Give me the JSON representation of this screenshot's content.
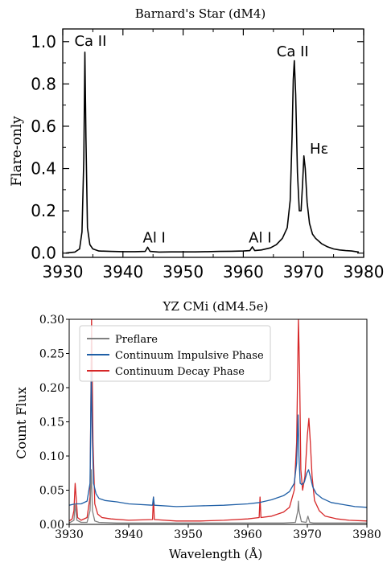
{
  "colors": {
    "axis": "#000000",
    "top_line": "#000000",
    "preflare": "#808080",
    "impulsive": "#1f5fa6",
    "decay": "#d62728"
  },
  "chart_data": [
    {
      "type": "line",
      "title": "Barnard's Star (dM4)",
      "xlabel": "",
      "ylabel": "Flare-only",
      "xlim": [
        3930,
        3980
      ],
      "ylim": [
        -0.02,
        1.06
      ],
      "x_ticks": [
        "3930",
        "3940",
        "3950",
        "3960",
        "3970",
        "3980"
      ],
      "y_ticks": [
        "0.0",
        "0.2",
        "0.4",
        "0.6",
        "0.8",
        "1.0"
      ],
      "grid": false,
      "annotations": [
        {
          "text": "Ca II",
          "x": 3934.6,
          "y": 0.98
        },
        {
          "text": "Al I",
          "x": 3945.2,
          "y": 0.05
        },
        {
          "text": "Al I",
          "x": 3962.8,
          "y": 0.05
        },
        {
          "text": "Ca II",
          "x": 3968.2,
          "y": 0.93
        },
        {
          "text": "Hε",
          "x": 3972.6,
          "y": 0.47
        }
      ],
      "series": [
        {
          "x": [
            3930.5,
            3931,
            3932,
            3932.8,
            3933.2,
            3933.5,
            3933.67,
            3933.85,
            3934.1,
            3934.5,
            3935,
            3936,
            3938,
            3940,
            3942,
            3943.7,
            3944.1,
            3944.5,
            3946,
            3948,
            3950,
            3952,
            3954,
            3956,
            3958,
            3960,
            3961.1,
            3961.5,
            3961.9,
            3963,
            3964.5,
            3965.5,
            3966.5,
            3967.3,
            3967.8,
            3968.1,
            3968.3,
            3968.47,
            3968.7,
            3969,
            3969.3,
            3969.6,
            3969.85,
            3970.07,
            3970.3,
            3970.6,
            3971,
            3971.5,
            3972,
            3973,
            3974,
            3975,
            3976,
            3977,
            3978,
            3979.2
          ],
          "y": [
            0.0,
            0.002,
            0.005,
            0.02,
            0.1,
            0.45,
            0.95,
            0.55,
            0.12,
            0.04,
            0.02,
            0.01,
            0.008,
            0.007,
            0.007,
            0.008,
            0.028,
            0.008,
            0.005,
            0.006,
            0.006,
            0.006,
            0.007,
            0.008,
            0.009,
            0.01,
            0.012,
            0.03,
            0.012,
            0.015,
            0.025,
            0.04,
            0.07,
            0.12,
            0.25,
            0.55,
            0.82,
            0.91,
            0.75,
            0.38,
            0.2,
            0.2,
            0.33,
            0.46,
            0.4,
            0.24,
            0.14,
            0.09,
            0.07,
            0.045,
            0.03,
            0.02,
            0.015,
            0.012,
            0.01,
            0.005
          ]
        }
      ]
    },
    {
      "type": "line",
      "title": "YZ CMi (dM4.5e)",
      "xlabel": "Wavelength (Å)",
      "ylabel": "Count Flux",
      "xlim": [
        3930,
        3980
      ],
      "ylim": [
        0.0,
        0.3
      ],
      "x_ticks": [
        "3930",
        "3940",
        "3950",
        "3960",
        "3970",
        "3980"
      ],
      "y_ticks": [
        "0.00",
        "0.05",
        "0.10",
        "0.15",
        "0.20",
        "0.25",
        "0.30"
      ],
      "grid": false,
      "legend_position": "top-left",
      "series": [
        {
          "name": "Preflare",
          "x": [
            3930,
            3930.8,
            3931,
            3931.3,
            3932,
            3933,
            3933.5,
            3933.7,
            3933.9,
            3934.3,
            3935,
            3938,
            3944,
            3950,
            3958,
            3962,
            3966,
            3968,
            3968.4,
            3968.5,
            3968.6,
            3969,
            3969.8,
            3970.1,
            3970.4,
            3971,
            3975,
            3980
          ],
          "y": [
            0.002,
            0.006,
            0.03,
            0.006,
            0.003,
            0.003,
            0.02,
            0.08,
            0.02,
            0.005,
            0.003,
            0.002,
            0.002,
            0.002,
            0.002,
            0.002,
            0.002,
            0.003,
            0.02,
            0.034,
            0.02,
            0.004,
            0.003,
            0.012,
            0.003,
            0.002,
            0.002,
            0.002
          ]
        },
        {
          "name": "Continuum Impulsive Phase",
          "x": [
            3930,
            3931,
            3932,
            3933,
            3933.5,
            3933.7,
            3933.9,
            3934.1,
            3934.5,
            3935,
            3936,
            3938,
            3940,
            3944,
            3944.15,
            3944.3,
            3948,
            3952,
            3956,
            3960,
            3962,
            3964,
            3966,
            3967,
            3967.8,
            3968.2,
            3968.45,
            3968.6,
            3968.8,
            3969.1,
            3969.5,
            3969.9,
            3970.2,
            3970.5,
            3970.9,
            3971.5,
            3972.5,
            3974,
            3976,
            3978,
            3980
          ],
          "y": [
            0.028,
            0.03,
            0.03,
            0.034,
            0.06,
            0.22,
            0.12,
            0.06,
            0.045,
            0.038,
            0.035,
            0.033,
            0.03,
            0.028,
            0.04,
            0.028,
            0.026,
            0.027,
            0.028,
            0.03,
            0.032,
            0.036,
            0.042,
            0.048,
            0.06,
            0.09,
            0.16,
            0.1,
            0.06,
            0.058,
            0.062,
            0.075,
            0.08,
            0.07,
            0.055,
            0.045,
            0.038,
            0.032,
            0.029,
            0.026,
            0.025
          ]
        },
        {
          "name": "Continuum Decay Phase",
          "x": [
            3930,
            3930.5,
            3930.8,
            3931,
            3931.4,
            3932,
            3933,
            3933.5,
            3933.75,
            3934,
            3934.3,
            3934.8,
            3935.5,
            3937,
            3940,
            3944,
            3944.15,
            3944.3,
            3948,
            3952,
            3956,
            3960,
            3961.9,
            3962.05,
            3962.2,
            3964,
            3966,
            3967,
            3967.8,
            3968.2,
            3968.5,
            3968.7,
            3968.9,
            3969.2,
            3969.6,
            3970,
            3970.25,
            3970.5,
            3970.8,
            3971.2,
            3972,
            3973,
            3975,
            3977,
            3980
          ],
          "y": [
            0.005,
            0.008,
            0.02,
            0.06,
            0.01,
            0.006,
            0.01,
            0.04,
            0.3,
            0.12,
            0.03,
            0.015,
            0.01,
            0.008,
            0.006,
            0.007,
            0.04,
            0.007,
            0.005,
            0.005,
            0.006,
            0.008,
            0.01,
            0.04,
            0.01,
            0.012,
            0.018,
            0.025,
            0.05,
            0.12,
            0.3,
            0.22,
            0.08,
            0.05,
            0.07,
            0.13,
            0.155,
            0.12,
            0.07,
            0.035,
            0.02,
            0.012,
            0.008,
            0.006,
            0.005
          ]
        }
      ]
    }
  ]
}
